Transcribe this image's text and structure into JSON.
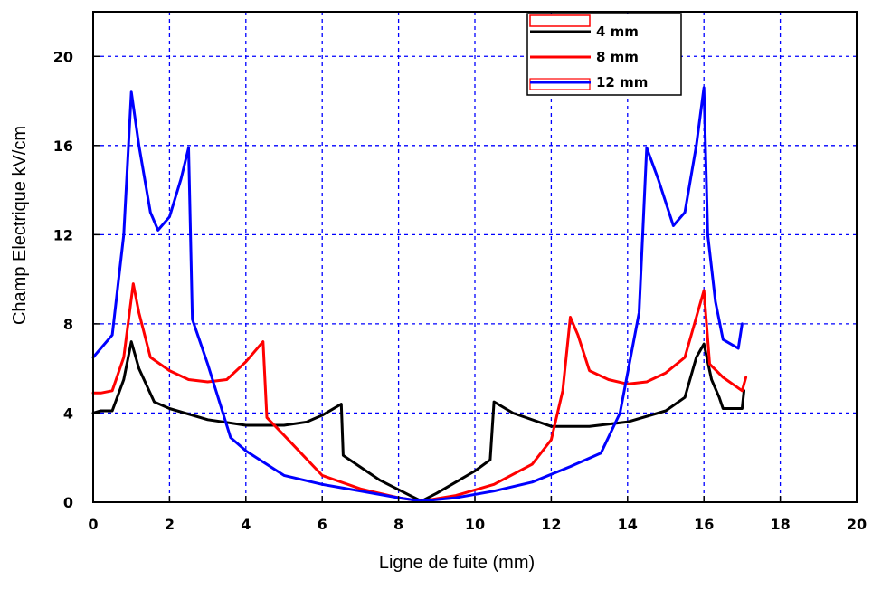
{
  "chart_data": {
    "type": "line",
    "title": "",
    "xlabel": "Ligne de fuite (mm)",
    "ylabel": "Champ Electrique kV/cm",
    "xlim": [
      0,
      20
    ],
    "ylim": [
      0,
      22
    ],
    "xticks": [
      0,
      2,
      4,
      6,
      8,
      10,
      12,
      14,
      16,
      18,
      20
    ],
    "yticks": [
      0,
      4,
      8,
      12,
      16,
      20
    ],
    "xtick_labels": [
      "0",
      "2",
      "4",
      "6",
      "8",
      "10",
      "12",
      "14",
      "16",
      "18",
      "20"
    ],
    "ytick_labels": [
      "0",
      "4",
      "8",
      "12",
      "16",
      "20"
    ],
    "grid": true,
    "grid_style": "dashed",
    "grid_color": "#0000ff",
    "legend_position": "top-right",
    "series": [
      {
        "name": "4 mm",
        "legend_label": "4   mm",
        "color": "#000000",
        "points": [
          [
            0,
            4.0
          ],
          [
            0.2,
            4.1
          ],
          [
            0.5,
            4.1
          ],
          [
            0.8,
            5.5
          ],
          [
            1.0,
            7.2
          ],
          [
            1.2,
            6.0
          ],
          [
            1.6,
            4.5
          ],
          [
            2.0,
            4.2
          ],
          [
            3.0,
            3.7
          ],
          [
            4.0,
            3.45
          ],
          [
            5.0,
            3.45
          ],
          [
            5.6,
            3.6
          ],
          [
            6.0,
            3.9
          ],
          [
            6.5,
            4.4
          ],
          [
            6.55,
            2.1
          ],
          [
            7.5,
            1.0
          ],
          [
            8.3,
            0.3
          ],
          [
            8.6,
            0.05
          ],
          [
            9.0,
            0.4
          ],
          [
            9.5,
            0.9
          ],
          [
            10.0,
            1.4
          ],
          [
            10.4,
            1.9
          ],
          [
            10.5,
            4.5
          ],
          [
            11.0,
            4.0
          ],
          [
            12.0,
            3.4
          ],
          [
            13.0,
            3.4
          ],
          [
            14.0,
            3.6
          ],
          [
            15.0,
            4.1
          ],
          [
            15.5,
            4.7
          ],
          [
            15.8,
            6.5
          ],
          [
            16.0,
            7.1
          ],
          [
            16.2,
            5.5
          ],
          [
            16.4,
            4.7
          ],
          [
            16.5,
            4.2
          ],
          [
            16.8,
            4.2
          ],
          [
            17.0,
            4.2
          ],
          [
            17.05,
            5.0
          ]
        ]
      },
      {
        "name": "8 mm",
        "legend_label": "8   mm",
        "color": "#ff0000",
        "points": [
          [
            0,
            4.9
          ],
          [
            0.2,
            4.9
          ],
          [
            0.5,
            5.0
          ],
          [
            0.8,
            6.5
          ],
          [
            1.05,
            9.8
          ],
          [
            1.2,
            8.5
          ],
          [
            1.5,
            6.5
          ],
          [
            2.0,
            5.9
          ],
          [
            2.5,
            5.5
          ],
          [
            3.0,
            5.4
          ],
          [
            3.5,
            5.5
          ],
          [
            4.0,
            6.3
          ],
          [
            4.45,
            7.2
          ],
          [
            4.55,
            3.8
          ],
          [
            5.0,
            3.0
          ],
          [
            6.0,
            1.2
          ],
          [
            7.0,
            0.6
          ],
          [
            8.0,
            0.2
          ],
          [
            8.6,
            0.05
          ],
          [
            9.5,
            0.3
          ],
          [
            10.5,
            0.8
          ],
          [
            11.5,
            1.7
          ],
          [
            12.0,
            2.8
          ],
          [
            12.3,
            5.0
          ],
          [
            12.5,
            8.3
          ],
          [
            12.7,
            7.5
          ],
          [
            13.0,
            5.9
          ],
          [
            13.5,
            5.5
          ],
          [
            14.0,
            5.3
          ],
          [
            14.5,
            5.4
          ],
          [
            15.0,
            5.8
          ],
          [
            15.5,
            6.5
          ],
          [
            15.8,
            8.3
          ],
          [
            16.0,
            9.5
          ],
          [
            16.15,
            6.2
          ],
          [
            16.5,
            5.6
          ],
          [
            17.0,
            5.0
          ],
          [
            17.1,
            5.6
          ]
        ]
      },
      {
        "name": "12 mm",
        "legend_label": "12   mm",
        "color": "#0000ff",
        "points": [
          [
            0,
            6.5
          ],
          [
            0.5,
            7.5
          ],
          [
            0.8,
            12.0
          ],
          [
            1.0,
            18.4
          ],
          [
            1.2,
            16.0
          ],
          [
            1.5,
            13.0
          ],
          [
            1.7,
            12.2
          ],
          [
            2.0,
            12.8
          ],
          [
            2.3,
            14.5
          ],
          [
            2.5,
            15.9
          ],
          [
            2.6,
            8.2
          ],
          [
            3.0,
            6.2
          ],
          [
            3.6,
            2.9
          ],
          [
            4.0,
            2.3
          ],
          [
            5.0,
            1.2
          ],
          [
            6.0,
            0.8
          ],
          [
            7.0,
            0.5
          ],
          [
            8.0,
            0.2
          ],
          [
            8.6,
            0.05
          ],
          [
            9.5,
            0.2
          ],
          [
            10.5,
            0.5
          ],
          [
            11.5,
            0.9
          ],
          [
            12.5,
            1.6
          ],
          [
            13.3,
            2.2
          ],
          [
            13.8,
            4.0
          ],
          [
            14.3,
            8.5
          ],
          [
            14.5,
            15.9
          ],
          [
            14.8,
            14.5
          ],
          [
            15.2,
            12.4
          ],
          [
            15.5,
            13.0
          ],
          [
            15.8,
            16.0
          ],
          [
            16.0,
            18.6
          ],
          [
            16.1,
            12.0
          ],
          [
            16.3,
            9.0
          ],
          [
            16.5,
            7.3
          ],
          [
            16.9,
            6.9
          ],
          [
            17.0,
            8.0
          ]
        ]
      }
    ]
  }
}
